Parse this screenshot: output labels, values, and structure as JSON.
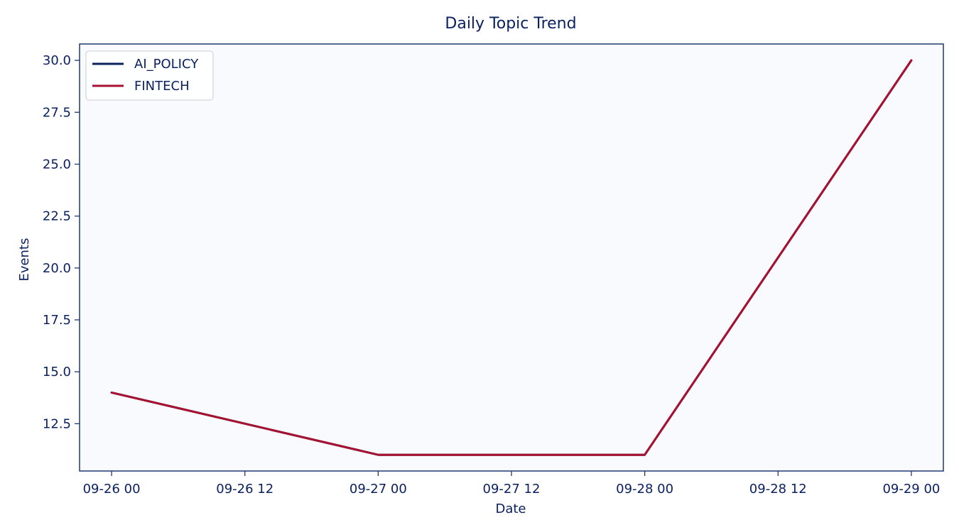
{
  "chart_data": {
    "type": "line",
    "title": "Daily Topic Trend",
    "xlabel": "Date",
    "ylabel": "Events",
    "x": [
      "2024-09-26",
      "2024-09-27",
      "2024-09-28",
      "2024-09-29"
    ],
    "x_range": [
      "2024-09-25T21:07",
      "2024-09-29T02:53"
    ],
    "ylim": [
      10.22,
      30.79
    ],
    "x_ticks": [
      {
        "value": "2024-09-26T00:00",
        "label": "09-26 00"
      },
      {
        "value": "2024-09-26T12:00",
        "label": "09-26 12"
      },
      {
        "value": "2024-09-27T00:00",
        "label": "09-27 00"
      },
      {
        "value": "2024-09-27T12:00",
        "label": "09-27 12"
      },
      {
        "value": "2024-09-28T00:00",
        "label": "09-28 00"
      },
      {
        "value": "2024-09-28T12:00",
        "label": "09-28 12"
      },
      {
        "value": "2024-09-29T00:00",
        "label": "09-29 00"
      }
    ],
    "y_ticks": [
      {
        "value": 12.5,
        "label": "12.5"
      },
      {
        "value": 15.0,
        "label": "15.0"
      },
      {
        "value": 17.5,
        "label": "17.5"
      },
      {
        "value": 20.0,
        "label": "20.0"
      },
      {
        "value": 22.5,
        "label": "22.5"
      },
      {
        "value": 25.0,
        "label": "25.0"
      },
      {
        "value": 27.5,
        "label": "27.5"
      },
      {
        "value": 30.0,
        "label": "30.0"
      }
    ],
    "series": [
      {
        "name": "AI_POLICY",
        "color": "#0b2160",
        "values": [
          14,
          11,
          11,
          30
        ]
      },
      {
        "name": "FINTECH",
        "color": "#a8112f",
        "values": [
          14,
          11,
          11,
          30
        ]
      }
    ],
    "grid": false,
    "legend_position": "top-left",
    "colors": {
      "text": "#0b2160",
      "plot_background": "#f8fafe",
      "axes": "#1f3a6e"
    }
  }
}
